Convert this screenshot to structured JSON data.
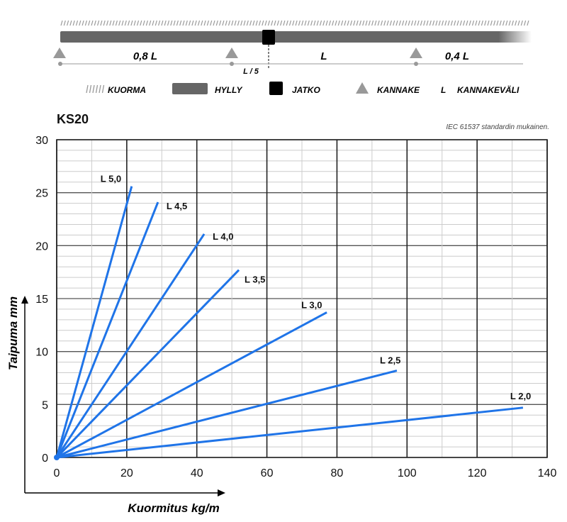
{
  "diagram": {
    "spans": [
      "0,8 L",
      "L",
      "0,4 L"
    ],
    "joint_offset": "L / 5",
    "legend": [
      {
        "icon": "hatch-icon",
        "label": "KUORMA"
      },
      {
        "icon": "shelf-bar-icon",
        "label": "HYLLY"
      },
      {
        "icon": "black-square-icon",
        "label": "JATKO"
      },
      {
        "icon": "triangle-icon",
        "label": "KANNAKE"
      },
      {
        "icon": "L",
        "label": "KANNAKEVÄLI"
      }
    ],
    "colors": {
      "shelf": "#666666",
      "joint": "#000000",
      "support": "#999999"
    }
  },
  "chart_data": {
    "type": "line",
    "title": "KS20",
    "subtitle": "IEC 61537 standardin mukainen.",
    "xlabel": "Kuormitus kg/m",
    "ylabel": "Taipuma mm",
    "xlim": [
      0,
      140
    ],
    "ylim": [
      0,
      30
    ],
    "xticks": [
      0,
      20,
      40,
      60,
      80,
      100,
      120,
      140
    ],
    "yticks": [
      0,
      5,
      10,
      15,
      20,
      25,
      30
    ],
    "grid": true,
    "line_color": "#1f74e8",
    "series": [
      {
        "name": "L 5,0",
        "x": [
          0,
          21.4
        ],
        "y": [
          0,
          25.6
        ]
      },
      {
        "name": "L 4,5",
        "x": [
          0,
          28.9
        ],
        "y": [
          0,
          24.1
        ]
      },
      {
        "name": "L 4,0",
        "x": [
          0,
          42.1
        ],
        "y": [
          0,
          21.1
        ]
      },
      {
        "name": "L 3,5",
        "x": [
          0,
          52
        ],
        "y": [
          0,
          17.7
        ]
      },
      {
        "name": "L 3,0",
        "x": [
          0,
          77.1
        ],
        "y": [
          0,
          13.7
        ]
      },
      {
        "name": "L 2,5",
        "x": [
          0,
          97.1
        ],
        "y": [
          0,
          8.2
        ]
      },
      {
        "name": "L 2,0",
        "x": [
          0,
          133.1
        ],
        "y": [
          0,
          4.7
        ]
      }
    ]
  }
}
